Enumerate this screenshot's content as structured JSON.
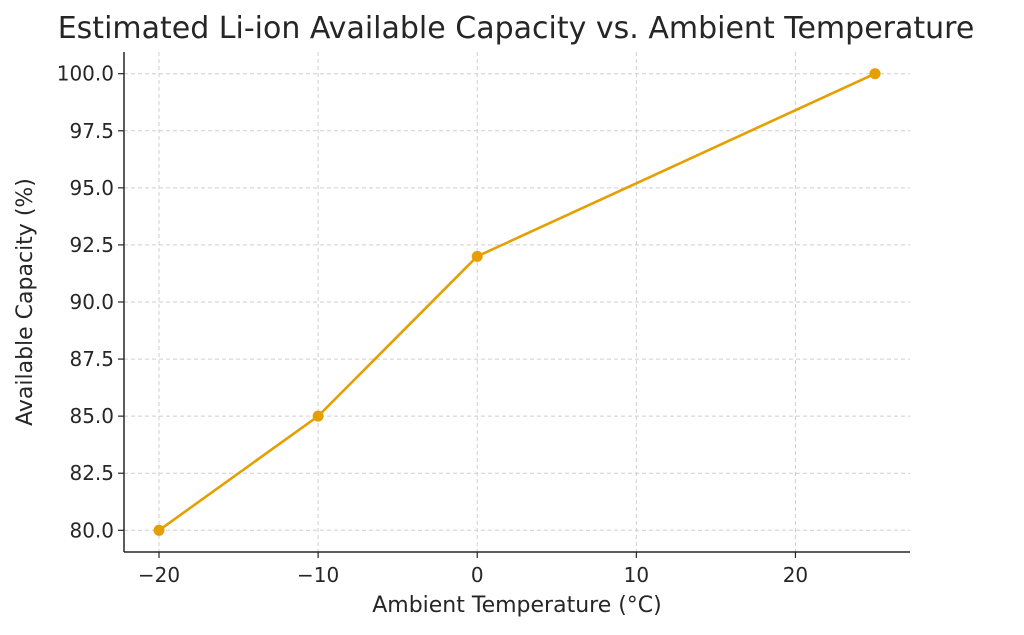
{
  "chart_data": {
    "type": "line",
    "title": "Estimated Li-ion Available Capacity vs. Ambient Temperature",
    "xlabel": "Ambient Temperature (°C)",
    "ylabel": "Available Capacity (%)",
    "x": [
      -20,
      -10,
      0,
      25
    ],
    "series": [
      {
        "values": [
          80,
          85,
          92,
          100
        ],
        "color": "#E69F00",
        "marker": "circle"
      }
    ],
    "xlim": [
      -22.2,
      27.2
    ],
    "ylim": [
      79.05,
      100.95
    ],
    "xticks": [
      -20,
      -10,
      0,
      10,
      20
    ],
    "xtick_labels": [
      "−20",
      "−10",
      "0",
      "10",
      "20"
    ],
    "yticks": [
      80,
      82.5,
      85,
      87.5,
      90,
      92.5,
      95,
      97.5,
      100
    ],
    "ytick_labels": [
      "80.0",
      "82.5",
      "85.0",
      "87.5",
      "90.0",
      "92.5",
      "95.0",
      "97.5",
      "100.0"
    ],
    "grid": true,
    "grid_style": "dashed"
  }
}
